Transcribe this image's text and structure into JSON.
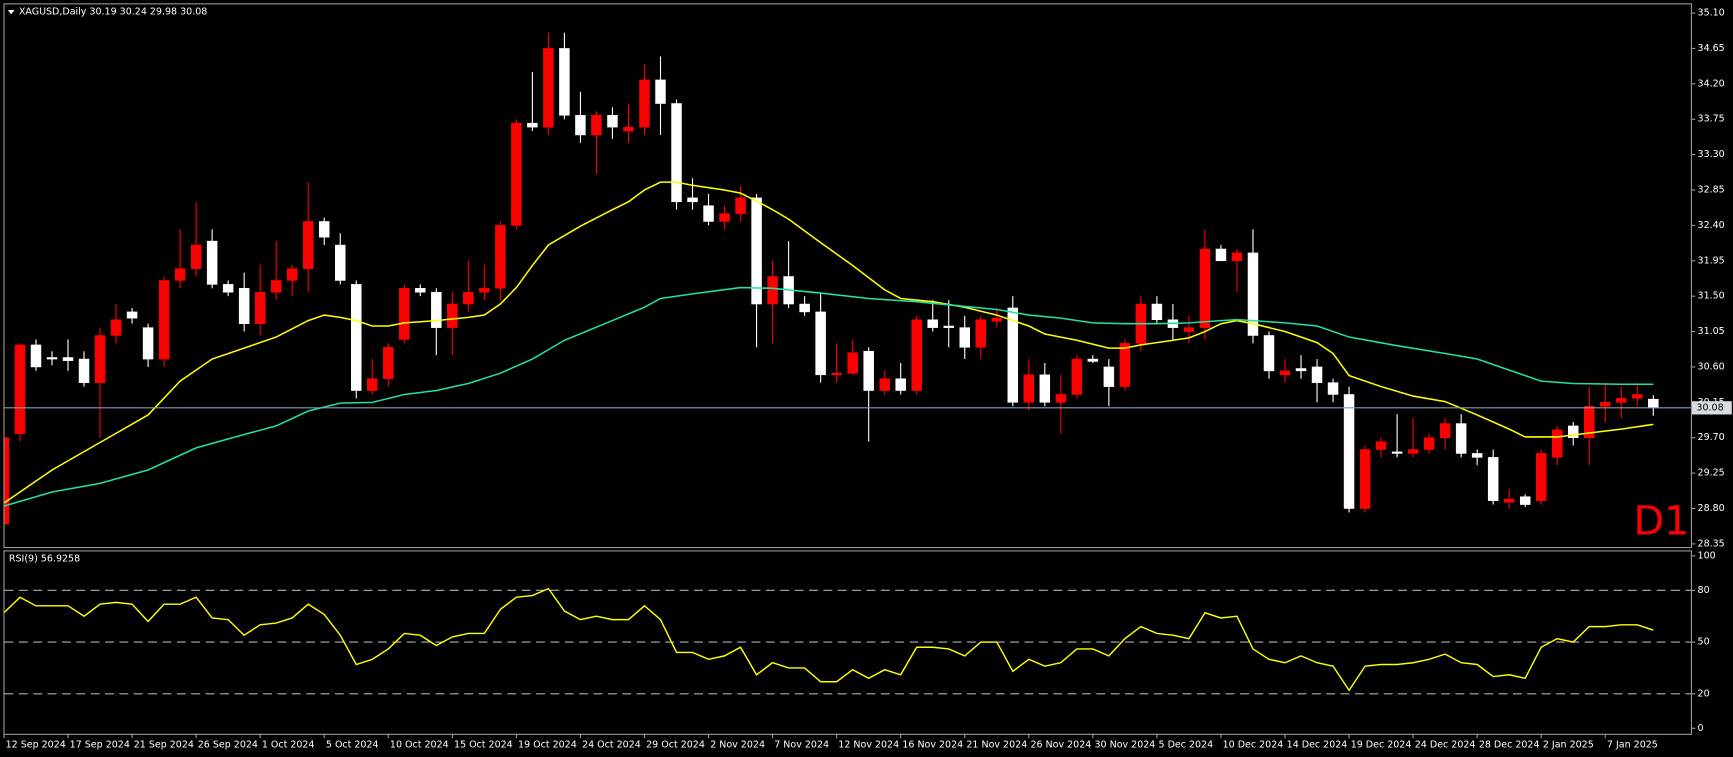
{
  "chart_data": [
    {
      "type": "candlestick",
      "title": "XAGUSD,Daily  30.19 30.24 29.98 30.08",
      "annotation": "D1",
      "annotation_color": "#ff0000",
      "up_color": "#ff0000",
      "down_color": "#ffffff",
      "categories": [
        "12 Sep 2024",
        null,
        null,
        null,
        "17 Sep 2024",
        null,
        null,
        null,
        "21 Sep 2024",
        null,
        null,
        null,
        "26 Sep 2024",
        null,
        null,
        null,
        "1 Oct 2024",
        null,
        null,
        null,
        "5 Oct 2024",
        null,
        null,
        null,
        "10 Oct 2024",
        null,
        null,
        null,
        "15 Oct 2024",
        null,
        null,
        null,
        "19 Oct 2024",
        null,
        null,
        null,
        "24 Oct 2024",
        null,
        null,
        null,
        "29 Oct 2024",
        null,
        null,
        null,
        "2 Nov 2024",
        null,
        null,
        null,
        "7 Nov 2024",
        null,
        null,
        null,
        "12 Nov 2024",
        null,
        null,
        null,
        "16 Nov 2024",
        null,
        null,
        null,
        "21 Nov 2024",
        null,
        null,
        null,
        "26 Nov 2024",
        null,
        null,
        null,
        "30 Nov 2024",
        null,
        null,
        null,
        "5 Dec 2024",
        null,
        null,
        null,
        "10 Dec 2024",
        null,
        null,
        null,
        "14 Dec 2024",
        null,
        null,
        null,
        "19 Dec 2024",
        null,
        null,
        null,
        "24 Dec 2024",
        null,
        null,
        null,
        "28 Dec 2024",
        null,
        null,
        null,
        "2 Jan 2025",
        null,
        null,
        null,
        "7 Jan 2025",
        null,
        null,
        null
      ],
      "open": [
        28.6,
        29.75,
        30.88,
        30.72,
        30.72,
        30.7,
        30.4,
        31.0,
        31.3,
        31.1,
        30.7,
        31.7,
        31.85,
        32.2,
        31.65,
        31.6,
        31.15,
        31.55,
        31.7,
        31.85,
        32.45,
        32.15,
        31.65,
        30.3,
        30.45,
        30.95,
        31.6,
        31.55,
        31.1,
        31.4,
        31.55,
        31.6,
        32.4,
        33.7,
        33.65,
        34.65,
        33.8,
        33.55,
        33.8,
        33.6,
        33.65,
        34.25,
        33.95,
        32.75,
        32.65,
        32.45,
        32.55,
        32.75,
        31.4,
        31.75,
        31.4,
        31.3,
        30.5,
        30.52,
        30.8,
        30.3,
        30.45,
        30.3,
        31.2,
        31.12,
        31.1,
        30.85,
        31.18,
        31.35,
        30.15,
        30.5,
        30.15,
        30.25,
        30.7,
        30.6,
        30.35,
        30.9,
        31.4,
        31.2,
        31.05,
        31.1,
        32.1,
        31.95,
        32.05,
        31.0,
        30.5,
        30.58,
        30.6,
        30.4,
        30.25,
        28.8,
        29.55,
        29.52,
        29.5,
        29.55,
        29.7,
        29.88,
        29.5,
        29.45,
        28.88,
        28.95,
        28.9,
        29.45,
        29.85,
        29.7,
        30.1,
        30.15,
        30.2,
        30.19
      ],
      "high": [
        29.7,
        30.9,
        30.95,
        30.8,
        30.95,
        30.8,
        31.1,
        31.4,
        31.35,
        31.15,
        31.75,
        32.35,
        32.7,
        32.35,
        31.7,
        31.8,
        31.9,
        32.2,
        31.9,
        32.95,
        32.5,
        32.3,
        31.7,
        30.7,
        30.9,
        31.65,
        31.65,
        31.6,
        31.55,
        31.95,
        31.9,
        32.45,
        33.75,
        34.35,
        34.85,
        34.85,
        34.1,
        33.85,
        33.9,
        33.95,
        34.45,
        34.55,
        34.0,
        33.0,
        32.8,
        32.65,
        32.9,
        32.8,
        31.95,
        32.2,
        31.5,
        31.55,
        30.9,
        30.95,
        30.85,
        30.55,
        30.65,
        31.25,
        31.45,
        31.45,
        31.25,
        31.25,
        31.35,
        31.5,
        30.7,
        30.65,
        30.5,
        30.75,
        30.75,
        30.7,
        30.95,
        31.5,
        31.5,
        31.4,
        31.25,
        32.35,
        32.15,
        32.1,
        32.35,
        31.05,
        30.7,
        30.75,
        30.7,
        30.45,
        30.35,
        29.6,
        29.7,
        30.0,
        29.95,
        29.75,
        29.95,
        30.0,
        29.55,
        29.55,
        29.05,
        28.98,
        29.55,
        29.85,
        29.9,
        30.35,
        30.4,
        30.35,
        30.4,
        30.24
      ],
      "low": [
        28.55,
        29.65,
        30.55,
        30.62,
        30.55,
        30.35,
        29.7,
        30.9,
        31.15,
        30.6,
        30.6,
        31.6,
        31.75,
        31.6,
        31.5,
        31.05,
        31.0,
        31.45,
        31.5,
        31.55,
        32.15,
        31.65,
        30.2,
        30.25,
        30.35,
        30.9,
        31.5,
        30.75,
        30.75,
        31.3,
        31.45,
        31.45,
        32.35,
        33.6,
        33.55,
        33.75,
        33.45,
        33.05,
        33.5,
        33.45,
        33.55,
        33.55,
        32.6,
        32.6,
        32.4,
        32.35,
        32.45,
        30.85,
        30.9,
        31.35,
        31.25,
        30.4,
        30.4,
        30.5,
        29.65,
        30.25,
        30.25,
        30.25,
        31.05,
        30.85,
        30.7,
        30.7,
        31.1,
        30.1,
        30.05,
        30.1,
        29.75,
        30.2,
        30.65,
        30.1,
        30.3,
        30.8,
        31.15,
        30.95,
        30.9,
        30.95,
        31.95,
        31.55,
        30.9,
        30.45,
        30.4,
        30.45,
        30.15,
        30.15,
        28.75,
        28.75,
        29.45,
        29.45,
        29.45,
        29.5,
        29.55,
        29.45,
        29.35,
        28.85,
        28.8,
        28.82,
        28.85,
        29.35,
        29.6,
        29.35,
        29.9,
        29.95,
        30.1,
        29.98
      ],
      "close": [
        29.7,
        30.88,
        30.6,
        30.7,
        30.68,
        30.4,
        31.0,
        31.2,
        31.22,
        30.7,
        31.7,
        31.85,
        32.15,
        31.65,
        31.55,
        31.15,
        31.55,
        31.7,
        31.85,
        32.45,
        32.25,
        31.7,
        30.3,
        30.45,
        30.85,
        31.6,
        31.55,
        31.1,
        31.4,
        31.55,
        31.6,
        32.4,
        33.7,
        33.65,
        34.65,
        33.8,
        33.55,
        33.8,
        33.65,
        33.65,
        34.25,
        33.95,
        32.7,
        32.7,
        32.45,
        32.55,
        32.75,
        31.4,
        31.75,
        31.4,
        31.3,
        30.5,
        30.52,
        30.78,
        30.3,
        30.45,
        30.3,
        31.2,
        31.1,
        31.1,
        30.85,
        31.2,
        31.22,
        30.15,
        30.5,
        30.15,
        30.25,
        30.7,
        30.67,
        30.35,
        30.9,
        31.4,
        31.2,
        31.1,
        31.1,
        32.1,
        31.95,
        32.05,
        31.0,
        30.55,
        30.55,
        30.55,
        30.4,
        30.25,
        28.8,
        29.55,
        29.65,
        29.5,
        29.55,
        29.7,
        29.88,
        29.5,
        29.45,
        28.9,
        28.92,
        28.85,
        29.5,
        29.8,
        29.7,
        30.1,
        30.15,
        30.2,
        30.25,
        30.08
      ],
      "lines": [
        {
          "color": "#ffff00",
          "x": [
            0,
            3,
            6,
            9,
            11,
            13,
            15,
            17,
            19,
            20,
            21,
            22,
            23,
            24,
            25,
            27,
            29,
            30,
            31,
            32,
            33,
            34,
            36,
            38,
            39,
            40,
            41,
            42,
            43,
            45,
            46,
            47,
            48,
            49,
            51,
            53,
            55,
            56,
            58,
            60,
            62,
            64,
            65,
            67,
            69,
            70,
            71,
            73,
            74,
            75,
            76,
            77,
            78,
            80,
            82,
            83,
            84,
            86,
            88,
            90,
            92,
            94,
            95,
            97,
            99,
            101,
            103
          ],
          "values": [
            28.87,
            29.29,
            29.64,
            29.99,
            30.42,
            30.7,
            30.84,
            30.98,
            31.19,
            31.26,
            31.23,
            31.19,
            31.12,
            31.12,
            31.16,
            31.19,
            31.23,
            31.26,
            31.4,
            31.61,
            31.89,
            32.15,
            32.39,
            32.6,
            32.7,
            32.85,
            32.95,
            32.95,
            32.91,
            32.85,
            32.81,
            32.71,
            32.6,
            32.48,
            32.18,
            31.89,
            31.58,
            31.47,
            31.43,
            31.36,
            31.26,
            31.12,
            31.02,
            30.94,
            30.84,
            30.84,
            30.88,
            30.94,
            30.97,
            31.05,
            31.15,
            31.19,
            31.15,
            31.05,
            30.91,
            30.77,
            30.49,
            30.35,
            30.23,
            30.16,
            29.99,
            29.81,
            29.71,
            29.71,
            29.76,
            29.81,
            29.87
          ]
        },
        {
          "color": "#22e0a8",
          "x": [
            0,
            3,
            6,
            9,
            12,
            15,
            17,
            19,
            21,
            23,
            25,
            27,
            29,
            31,
            33,
            35,
            38,
            40,
            41,
            43,
            46,
            48,
            51,
            54,
            57,
            60,
            62,
            64,
            66,
            68,
            70,
            72,
            74,
            76,
            77,
            78,
            80,
            82,
            84,
            87,
            90,
            92,
            94,
            96,
            98,
            101,
            103
          ],
          "values": [
            28.83,
            29.01,
            29.12,
            29.29,
            29.57,
            29.74,
            29.85,
            30.04,
            30.14,
            30.15,
            30.25,
            30.3,
            30.39,
            30.52,
            30.7,
            30.94,
            31.19,
            31.36,
            31.47,
            31.53,
            31.61,
            31.6,
            31.54,
            31.47,
            31.43,
            31.37,
            31.33,
            31.26,
            31.22,
            31.16,
            31.15,
            31.15,
            31.16,
            31.19,
            31.2,
            31.19,
            31.16,
            31.12,
            30.98,
            30.87,
            30.77,
            30.7,
            30.56,
            30.42,
            30.39,
            30.38,
            30.38
          ]
        }
      ],
      "last_price": 30.08,
      "last_price_color": "#7f9fb0",
      "ylim": [
        28.31,
        35.21
      ],
      "yticks": [
        {
          "value": 35.1,
          "label": "35.10"
        },
        34.65,
        {
          "value": 34.2,
          "label": "34.20"
        },
        33.75,
        {
          "value": 33.3,
          "label": "33.30"
        },
        32.85,
        {
          "value": 32.4,
          "label": "32.40"
        },
        31.95,
        {
          "value": 31.5,
          "label": "31.50"
        },
        31.05,
        {
          "value": 30.6,
          "label": "30.60"
        },
        30.15,
        {
          "value": 29.7,
          "label": "29.70"
        },
        29.25,
        {
          "value": 28.8,
          "label": "28.80"
        },
        28.35
      ]
    },
    {
      "type": "line",
      "title": "RSI(9) 56.9258",
      "color": "#ffff00",
      "values": [
        67,
        76,
        71,
        71,
        71,
        65,
        72,
        73,
        72,
        62,
        72,
        72,
        76,
        64,
        63,
        54,
        60,
        61,
        64,
        72,
        66,
        54,
        37,
        40,
        46,
        55,
        54,
        48,
        53,
        55,
        55,
        69,
        76,
        77,
        81,
        68,
        63,
        65,
        63,
        63,
        71,
        63,
        44,
        44,
        40,
        42,
        47,
        31,
        38,
        35,
        35,
        27,
        27,
        34,
        29,
        34,
        31,
        47,
        47,
        46,
        42,
        50,
        50,
        33,
        40,
        36,
        38,
        46,
        46,
        42,
        52,
        59,
        55,
        54,
        52,
        67,
        64,
        65,
        46,
        40,
        38,
        42,
        38,
        36,
        22,
        36,
        37,
        37,
        38,
        40,
        43,
        38,
        37,
        30,
        31,
        29,
        47,
        52,
        50,
        59,
        59,
        60,
        60,
        56.93
      ],
      "ylim": [
        -3.2,
        103.2
      ],
      "yticks": [
        0,
        20,
        50,
        80,
        100
      ],
      "levels": [
        20,
        50,
        80
      ]
    }
  ]
}
